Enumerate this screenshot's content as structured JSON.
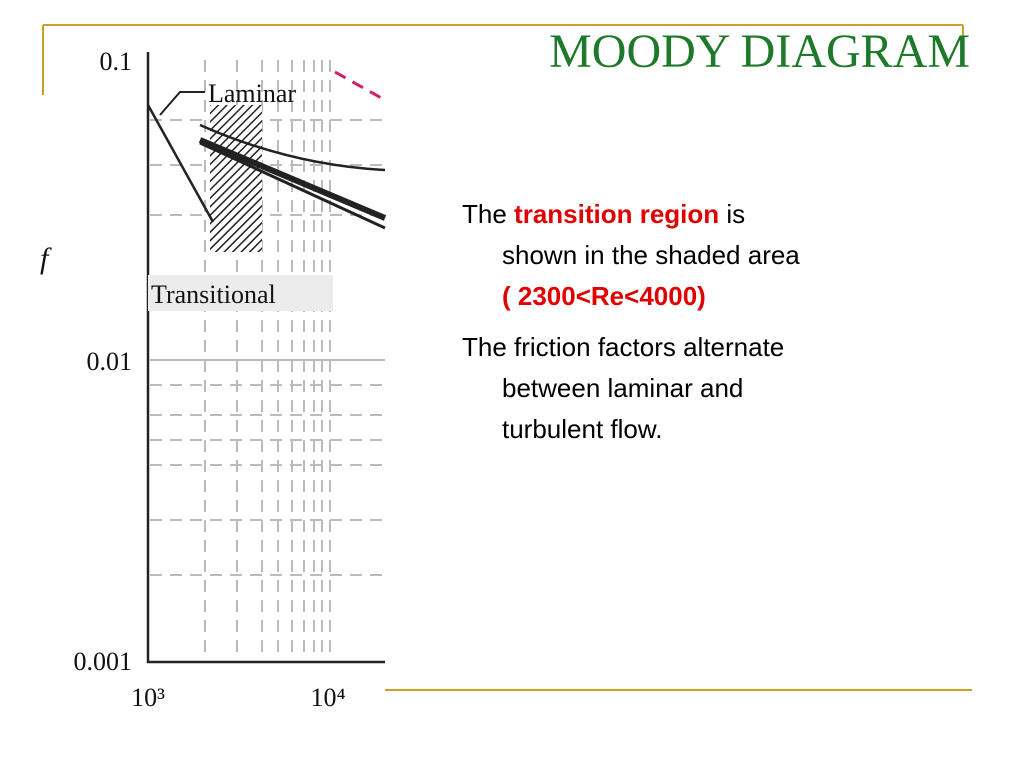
{
  "title": "MOODY DIAGRAM",
  "figure": {
    "y_axis_label": "f",
    "y_tick_labels": [
      "0.1",
      "0.01",
      "0.001"
    ],
    "x_tick_labels": [
      "10³",
      "10⁴"
    ],
    "annotations": [
      "Laminar",
      "Transitional"
    ]
  },
  "bullets": [
    {
      "lines": [
        [
          "The",
          "transition region",
          "is"
        ],
        [
          "shown in the shaded area"
        ],
        [
          "( 2300<Re<4000)"
        ]
      ]
    },
    {
      "lines": [
        [
          "The friction factors alternate"
        ],
        [
          "between laminar and"
        ],
        [
          "turbulent flow."
        ]
      ]
    }
  ]
}
